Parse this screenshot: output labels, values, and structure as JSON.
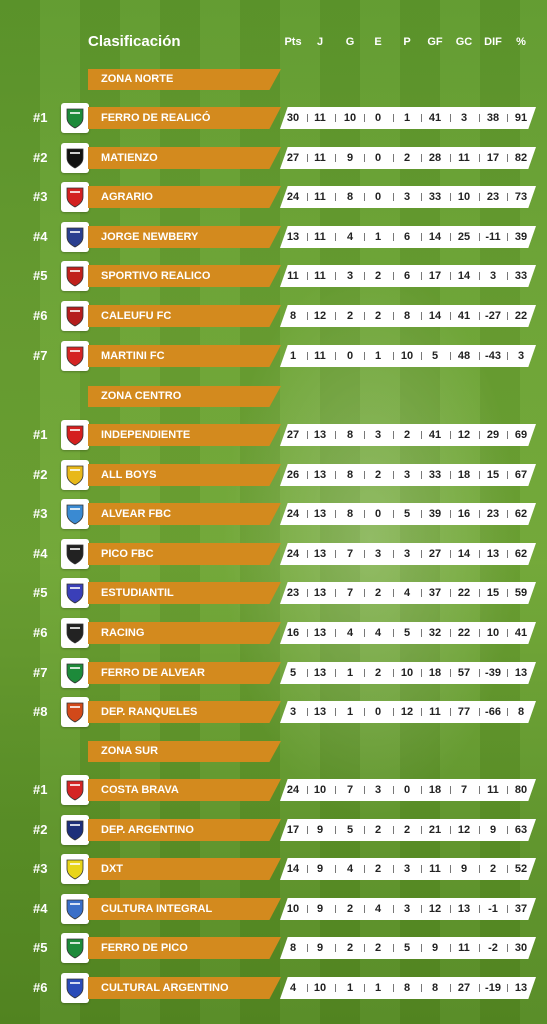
{
  "header": {
    "title": "Clasificación",
    "columns": [
      "Pts",
      "J",
      "G",
      "E",
      "P",
      "GF",
      "GC",
      "DIF",
      "%"
    ]
  },
  "zones": [
    {
      "name": "ZONA NORTE",
      "teams": [
        {
          "rank": "#1",
          "name": "FERRO DE REALICÓ",
          "crest_icon": "ferro-realico-crest-icon",
          "crest_color": "#1d8a3a",
          "stats": [
            "30",
            "11",
            "10",
            "0",
            "1",
            "41",
            "3",
            "38",
            "91"
          ]
        },
        {
          "rank": "#2",
          "name": "MATIENZO",
          "crest_icon": "matienzo-crest-icon",
          "crest_color": "#111111",
          "stats": [
            "27",
            "11",
            "9",
            "0",
            "2",
            "28",
            "11",
            "17",
            "82"
          ]
        },
        {
          "rank": "#3",
          "name": "AGRARIO",
          "crest_icon": "agrario-crest-icon",
          "crest_color": "#d32020",
          "stats": [
            "24",
            "11",
            "8",
            "0",
            "3",
            "33",
            "10",
            "23",
            "73"
          ]
        },
        {
          "rank": "#4",
          "name": "JORGE NEWBERY",
          "crest_icon": "jorge-newbery-crest-icon",
          "crest_color": "#2a3f8f",
          "stats": [
            "13",
            "11",
            "4",
            "1",
            "6",
            "14",
            "25",
            "-11",
            "39"
          ]
        },
        {
          "rank": "#5",
          "name": "SPORTIVO REALICO",
          "crest_icon": "sportivo-realico-crest-icon",
          "crest_color": "#c0201c",
          "stats": [
            "11",
            "11",
            "3",
            "2",
            "6",
            "17",
            "14",
            "3",
            "33"
          ]
        },
        {
          "rank": "#6",
          "name": "CALEUFU FC",
          "crest_icon": "caleufu-crest-icon",
          "crest_color": "#b51d1d",
          "stats": [
            "8",
            "12",
            "2",
            "2",
            "8",
            "14",
            "41",
            "-27",
            "22"
          ]
        },
        {
          "rank": "#7",
          "name": "MARTINI FC",
          "crest_icon": "martini-crest-icon",
          "crest_color": "#d42424",
          "stats": [
            "1",
            "11",
            "0",
            "1",
            "10",
            "5",
            "48",
            "-43",
            "3"
          ]
        }
      ]
    },
    {
      "name": "ZONA CENTRO",
      "teams": [
        {
          "rank": "#1",
          "name": "INDEPENDIENTE",
          "crest_icon": "independiente-crest-icon",
          "crest_color": "#d41f1f",
          "stats": [
            "27",
            "13",
            "8",
            "3",
            "2",
            "41",
            "12",
            "29",
            "69"
          ]
        },
        {
          "rank": "#2",
          "name": "ALL BOYS",
          "crest_icon": "all-boys-crest-icon",
          "crest_color": "#e8b81a",
          "stats": [
            "26",
            "13",
            "8",
            "2",
            "3",
            "33",
            "18",
            "15",
            "67"
          ]
        },
        {
          "rank": "#3",
          "name": "ALVEAR FBC",
          "crest_icon": "alvear-fbc-crest-icon",
          "crest_color": "#3a8ad2",
          "stats": [
            "24",
            "13",
            "8",
            "0",
            "5",
            "39",
            "16",
            "23",
            "62"
          ]
        },
        {
          "rank": "#4",
          "name": "PICO FBC",
          "crest_icon": "pico-fbc-crest-icon",
          "crest_color": "#222222",
          "stats": [
            "24",
            "13",
            "7",
            "3",
            "3",
            "27",
            "14",
            "13",
            "62"
          ]
        },
        {
          "rank": "#5",
          "name": "ESTUDIANTIL",
          "crest_icon": "estudiantil-crest-icon",
          "crest_color": "#3a3fb8",
          "stats": [
            "23",
            "13",
            "7",
            "2",
            "4",
            "37",
            "22",
            "15",
            "59"
          ]
        },
        {
          "rank": "#6",
          "name": "RACING",
          "crest_icon": "racing-crest-icon",
          "crest_color": "#222222",
          "stats": [
            "16",
            "13",
            "4",
            "4",
            "5",
            "32",
            "22",
            "10",
            "41"
          ]
        },
        {
          "rank": "#7",
          "name": "FERRO DE ALVEAR",
          "crest_icon": "ferro-alvear-crest-icon",
          "crest_color": "#1d8a3a",
          "stats": [
            "5",
            "13",
            "1",
            "2",
            "10",
            "18",
            "57",
            "-39",
            "13"
          ]
        },
        {
          "rank": "#8",
          "name": "DEP. RANQUELES",
          "crest_icon": "dep-ranqueles-crest-icon",
          "crest_color": "#d2491a",
          "stats": [
            "3",
            "13",
            "1",
            "0",
            "12",
            "11",
            "77",
            "-66",
            "8"
          ]
        }
      ]
    },
    {
      "name": "ZONA SUR",
      "teams": [
        {
          "rank": "#1",
          "name": "COSTA BRAVA",
          "crest_icon": "costa-brava-crest-icon",
          "crest_color": "#d42424",
          "stats": [
            "24",
            "10",
            "7",
            "3",
            "0",
            "18",
            "7",
            "11",
            "80"
          ]
        },
        {
          "rank": "#2",
          "name": "DEP. ARGENTINO",
          "crest_icon": "dep-argentino-crest-icon",
          "crest_color": "#1d2f7a",
          "stats": [
            "17",
            "9",
            "5",
            "2",
            "2",
            "21",
            "12",
            "9",
            "63"
          ]
        },
        {
          "rank": "#3",
          "name": "DXT",
          "crest_icon": "dxt-crest-icon",
          "crest_color": "#e8d51a",
          "stats": [
            "14",
            "9",
            "4",
            "2",
            "3",
            "11",
            "9",
            "2",
            "52"
          ]
        },
        {
          "rank": "#4",
          "name": "CULTURA INTEGRAL",
          "crest_icon": "cultura-integral-crest-icon",
          "crest_color": "#3a6fc8",
          "stats": [
            "10",
            "9",
            "2",
            "4",
            "3",
            "12",
            "13",
            "-1",
            "37"
          ]
        },
        {
          "rank": "#5",
          "name": "FERRO DE PICO",
          "crest_icon": "ferro-pico-crest-icon",
          "crest_color": "#1d8a3a",
          "stats": [
            "8",
            "9",
            "2",
            "2",
            "5",
            "9",
            "11",
            "-2",
            "30"
          ]
        },
        {
          "rank": "#6",
          "name": "CULTURAL ARGENTINO",
          "crest_icon": "cultural-argentino-crest-icon",
          "crest_color": "#2a4bb8",
          "stats": [
            "4",
            "10",
            "1",
            "1",
            "8",
            "8",
            "27",
            "-19",
            "13"
          ]
        }
      ]
    }
  ]
}
